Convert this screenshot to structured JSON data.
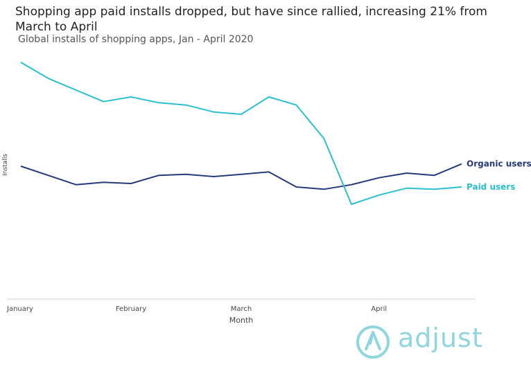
{
  "chart_data": {
    "type": "line",
    "title": "Shopping app paid installs dropped, but have since rallied, increasing 21% from March to April",
    "subtitle": "Global installs of shopping apps, Jan - April 2020",
    "xlabel": "Month",
    "ylabel": "Installs",
    "x_ticks": [
      {
        "label": "January",
        "index": 0
      },
      {
        "label": "February",
        "index": 4
      },
      {
        "label": "March",
        "index": 8
      },
      {
        "label": "April",
        "index": 13
      }
    ],
    "x_count": 17,
    "ylim": [
      0,
      100
    ],
    "grid": false,
    "series": [
      {
        "name": "Organic users",
        "color": "#24397a",
        "values": [
          55,
          51,
          47,
          48,
          47.5,
          51,
          51.5,
          50.5,
          51.5,
          52.5,
          46,
          45,
          47,
          50,
          52,
          51,
          56
        ]
      },
      {
        "name": "Paid users",
        "color": "#29bfd0",
        "values": [
          100,
          93,
          88,
          83,
          85,
          82.5,
          81.5,
          78.5,
          77.5,
          85,
          81.5,
          67,
          38.5,
          42.5,
          45.5,
          45,
          46
        ]
      }
    ]
  },
  "brand": {
    "name": "adjust",
    "color": "#8fd6df"
  }
}
